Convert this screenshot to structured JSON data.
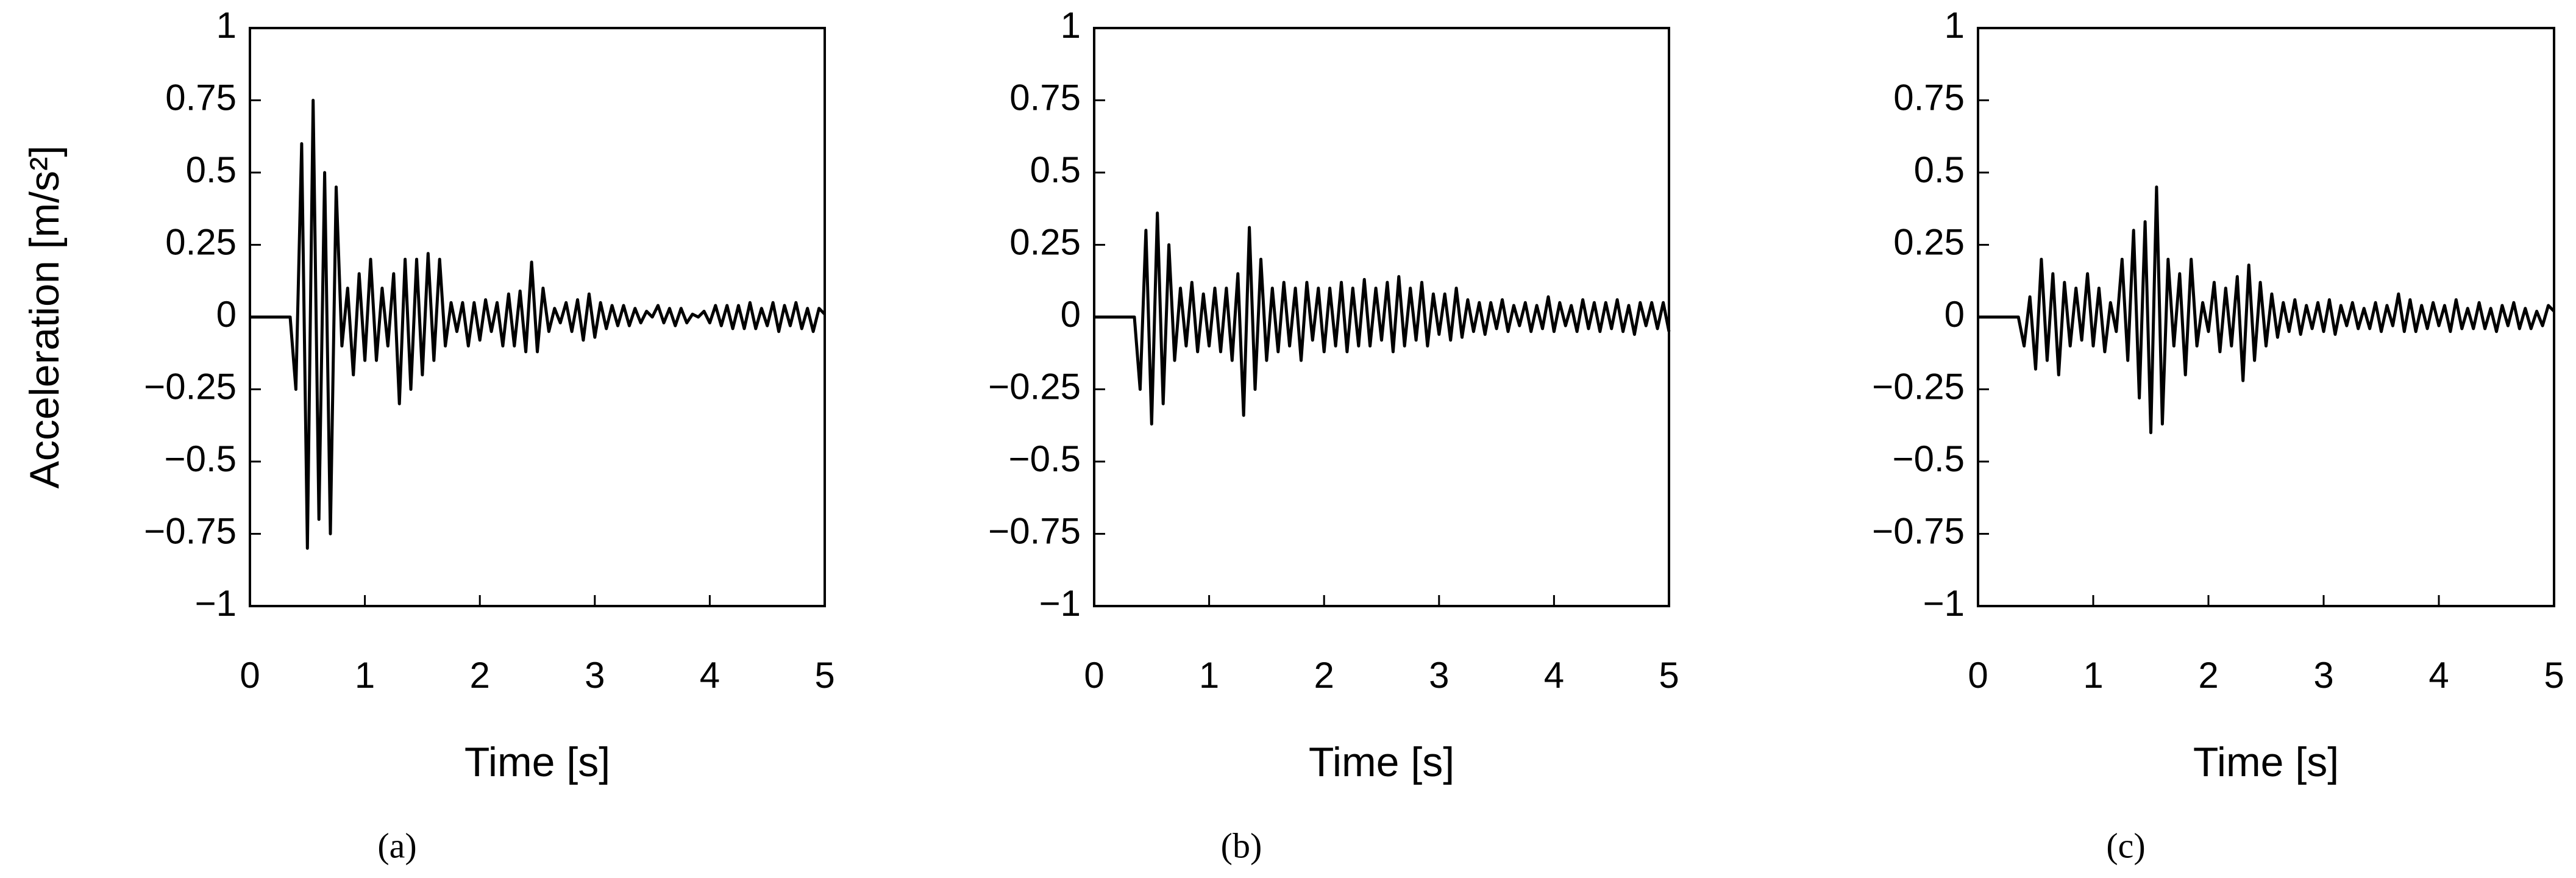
{
  "chart_data": [
    {
      "type": "line",
      "ylabel": "Acceleration [m/s²]",
      "xlabel": "Time [s]",
      "caption": "(a)",
      "xlim": [
        0,
        5
      ],
      "xticks": [
        0,
        1,
        2,
        3,
        4,
        5
      ],
      "ylim": [
        -1,
        1
      ],
      "yticks": [
        {
          "value": -1,
          "label": "−1"
        },
        {
          "value": -0.75,
          "label": "−0.75"
        },
        {
          "value": -0.5,
          "label": "−0.5"
        },
        {
          "value": -0.25,
          "label": "−0.25"
        },
        0,
        0.25,
        0.5,
        0.75,
        1
      ],
      "x": [
        0,
        0.05,
        0.1,
        0.15,
        0.2,
        0.25,
        0.3,
        0.35,
        0.4,
        0.45,
        0.5,
        0.55,
        0.6,
        0.65,
        0.7,
        0.75,
        0.8,
        0.85,
        0.9,
        0.95,
        1,
        1.05,
        1.1,
        1.15,
        1.2,
        1.25,
        1.3,
        1.35,
        1.4,
        1.45,
        1.5,
        1.55,
        1.6,
        1.65,
        1.7,
        1.75,
        1.8,
        1.85,
        1.9,
        1.95,
        2,
        2.05,
        2.1,
        2.15,
        2.2,
        2.25,
        2.3,
        2.35,
        2.4,
        2.45,
        2.5,
        2.55,
        2.6,
        2.65,
        2.7,
        2.75,
        2.8,
        2.85,
        2.9,
        2.95,
        3,
        3.05,
        3.1,
        3.15,
        3.2,
        3.25,
        3.3,
        3.35,
        3.4,
        3.45,
        3.5,
        3.55,
        3.6,
        3.65,
        3.7,
        3.75,
        3.8,
        3.85,
        3.9,
        3.95,
        4,
        4.05,
        4.1,
        4.15,
        4.2,
        4.25,
        4.3,
        4.35,
        4.4,
        4.45,
        4.5,
        4.55,
        4.6,
        4.65,
        4.7,
        4.75,
        4.8,
        4.85,
        4.9,
        4.95,
        5
      ],
      "series": [
        {
          "color": "#000000",
          "values": [
            0,
            0,
            0,
            0,
            0,
            0,
            0,
            0,
            -0.25,
            0.6,
            -0.8,
            0.75,
            -0.7,
            0.5,
            -0.75,
            0.45,
            -0.1,
            0.1,
            -0.2,
            0.15,
            -0.15,
            0.2,
            -0.15,
            0.1,
            -0.1,
            0.15,
            -0.3,
            0.2,
            -0.25,
            0.2,
            -0.2,
            0.22,
            -0.15,
            0.2,
            -0.1,
            0.05,
            -0.05,
            0.05,
            -0.1,
            0.05,
            -0.08,
            0.06,
            -0.05,
            0.05,
            -0.1,
            0.08,
            -0.1,
            0.09,
            -0.12,
            0.19,
            -0.12,
            0.1,
            -0.05,
            0.03,
            -0.02,
            0.05,
            -0.05,
            0.06,
            -0.08,
            0.08,
            -0.07,
            0.05,
            -0.04,
            0.04,
            -0.03,
            0.04,
            -0.03,
            0.03,
            -0.02,
            0.02,
            0,
            0.04,
            -0.02,
            0.03,
            -0.03,
            0.03,
            -0.02,
            0.01,
            0,
            0.02,
            -0.02,
            0.04,
            -0.03,
            0.04,
            -0.04,
            0.04,
            -0.04,
            0.05,
            -0.04,
            0.03,
            -0.03,
            0.05,
            -0.05,
            0.04,
            -0.03,
            0.05,
            -0.04,
            0.03,
            -0.05,
            0.03,
            0.01
          ]
        }
      ]
    },
    {
      "type": "line",
      "xlabel": "Time [s]",
      "caption": "(b)",
      "xlim": [
        0,
        5
      ],
      "xticks": [
        0,
        1,
        2,
        3,
        4,
        5
      ],
      "ylim": [
        -1,
        1
      ],
      "yticks": [
        {
          "value": -1,
          "label": "−1"
        },
        {
          "value": -0.75,
          "label": "−0.75"
        },
        {
          "value": -0.5,
          "label": "−0.5"
        },
        {
          "value": -0.25,
          "label": "−0.25"
        },
        0,
        0.25,
        0.5,
        0.75,
        1
      ],
      "x": [
        0,
        0.05,
        0.1,
        0.15,
        0.2,
        0.25,
        0.3,
        0.35,
        0.4,
        0.45,
        0.5,
        0.55,
        0.6,
        0.65,
        0.7,
        0.75,
        0.8,
        0.85,
        0.9,
        0.95,
        1,
        1.05,
        1.1,
        1.15,
        1.2,
        1.25,
        1.3,
        1.35,
        1.4,
        1.45,
        1.5,
        1.55,
        1.6,
        1.65,
        1.7,
        1.75,
        1.8,
        1.85,
        1.9,
        1.95,
        2,
        2.05,
        2.1,
        2.15,
        2.2,
        2.25,
        2.3,
        2.35,
        2.4,
        2.45,
        2.5,
        2.55,
        2.6,
        2.65,
        2.7,
        2.75,
        2.8,
        2.85,
        2.9,
        2.95,
        3,
        3.05,
        3.1,
        3.15,
        3.2,
        3.25,
        3.3,
        3.35,
        3.4,
        3.45,
        3.5,
        3.55,
        3.6,
        3.65,
        3.7,
        3.75,
        3.8,
        3.85,
        3.9,
        3.95,
        4,
        4.05,
        4.1,
        4.15,
        4.2,
        4.25,
        4.3,
        4.35,
        4.4,
        4.45,
        4.5,
        4.55,
        4.6,
        4.65,
        4.7,
        4.75,
        4.8,
        4.85,
        4.9,
        4.95,
        5
      ],
      "series": [
        {
          "color": "#000000",
          "values": [
            0,
            0,
            0,
            0,
            0,
            0,
            0,
            0,
            -0.25,
            0.3,
            -0.37,
            0.36,
            -0.3,
            0.25,
            -0.15,
            0.1,
            -0.1,
            0.12,
            -0.12,
            0.08,
            -0.1,
            0.1,
            -0.12,
            0.1,
            -0.15,
            0.15,
            -0.34,
            0.31,
            -0.25,
            0.2,
            -0.15,
            0.1,
            -0.12,
            0.12,
            -0.1,
            0.1,
            -0.15,
            0.12,
            -0.08,
            0.1,
            -0.12,
            0.1,
            -0.1,
            0.12,
            -0.12,
            0.1,
            -0.1,
            0.13,
            -0.1,
            0.1,
            -0.08,
            0.12,
            -0.12,
            0.14,
            -0.1,
            0.1,
            -0.08,
            0.12,
            -0.1,
            0.08,
            -0.06,
            0.08,
            -0.08,
            0.1,
            -0.07,
            0.06,
            -0.05,
            0.05,
            -0.06,
            0.05,
            -0.04,
            0.06,
            -0.05,
            0.04,
            -0.03,
            0.05,
            -0.05,
            0.04,
            -0.04,
            0.07,
            -0.05,
            0.05,
            -0.03,
            0.04,
            -0.05,
            0.06,
            -0.04,
            0.05,
            -0.05,
            0.05,
            -0.04,
            0.06,
            -0.05,
            0.04,
            -0.06,
            0.05,
            -0.03,
            0.05,
            -0.04,
            0.05,
            -0.05
          ]
        }
      ]
    },
    {
      "type": "line",
      "xlabel": "Time [s]",
      "caption": "(c)",
      "xlim": [
        0,
        5
      ],
      "xticks": [
        0,
        1,
        2,
        3,
        4,
        5
      ],
      "ylim": [
        -1,
        1
      ],
      "yticks": [
        {
          "value": -1,
          "label": "−1"
        },
        {
          "value": -0.75,
          "label": "−0.75"
        },
        {
          "value": -0.5,
          "label": "−0.5"
        },
        {
          "value": -0.25,
          "label": "−0.25"
        },
        0,
        0.25,
        0.5,
        0.75,
        1
      ],
      "x": [
        0,
        0.05,
        0.1,
        0.15,
        0.2,
        0.25,
        0.3,
        0.35,
        0.4,
        0.45,
        0.5,
        0.55,
        0.6,
        0.65,
        0.7,
        0.75,
        0.8,
        0.85,
        0.9,
        0.95,
        1,
        1.05,
        1.1,
        1.15,
        1.2,
        1.25,
        1.3,
        1.35,
        1.4,
        1.45,
        1.5,
        1.55,
        1.6,
        1.65,
        1.7,
        1.75,
        1.8,
        1.85,
        1.9,
        1.95,
        2,
        2.05,
        2.1,
        2.15,
        2.2,
        2.25,
        2.3,
        2.35,
        2.4,
        2.45,
        2.5,
        2.55,
        2.6,
        2.65,
        2.7,
        2.75,
        2.8,
        2.85,
        2.9,
        2.95,
        3,
        3.05,
        3.1,
        3.15,
        3.2,
        3.25,
        3.3,
        3.35,
        3.4,
        3.45,
        3.5,
        3.55,
        3.6,
        3.65,
        3.7,
        3.75,
        3.8,
        3.85,
        3.9,
        3.95,
        4,
        4.05,
        4.1,
        4.15,
        4.2,
        4.25,
        4.3,
        4.35,
        4.4,
        4.45,
        4.5,
        4.55,
        4.6,
        4.65,
        4.7,
        4.75,
        4.8,
        4.85,
        4.9,
        4.95,
        5
      ],
      "series": [
        {
          "color": "#000000",
          "values": [
            0,
            0,
            0,
            0,
            0,
            0,
            0,
            0,
            -0.1,
            0.07,
            -0.18,
            0.2,
            -0.15,
            0.15,
            -0.2,
            0.12,
            -0.1,
            0.1,
            -0.08,
            0.15,
            -0.1,
            0.1,
            -0.12,
            0.05,
            -0.05,
            0.2,
            -0.15,
            0.3,
            -0.28,
            0.33,
            -0.4,
            0.45,
            -0.37,
            0.2,
            -0.1,
            0.15,
            -0.2,
            0.2,
            -0.1,
            0.05,
            -0.05,
            0.12,
            -0.12,
            0.1,
            -0.1,
            0.14,
            -0.22,
            0.18,
            -0.15,
            0.12,
            -0.1,
            0.08,
            -0.07,
            0.05,
            -0.05,
            0.06,
            -0.06,
            0.04,
            -0.04,
            0.05,
            -0.05,
            0.06,
            -0.06,
            0.04,
            -0.03,
            0.05,
            -0.04,
            0.03,
            -0.04,
            0.05,
            -0.05,
            0.04,
            -0.03,
            0.08,
            -0.05,
            0.06,
            -0.05,
            0.04,
            -0.04,
            0.05,
            -0.03,
            0.04,
            -0.05,
            0.06,
            -0.04,
            0.03,
            -0.04,
            0.05,
            -0.04,
            0.03,
            -0.05,
            0.04,
            -0.03,
            0.05,
            -0.04,
            0.03,
            -0.04,
            0.02,
            -0.03,
            0.04,
            0.02
          ]
        }
      ]
    }
  ]
}
